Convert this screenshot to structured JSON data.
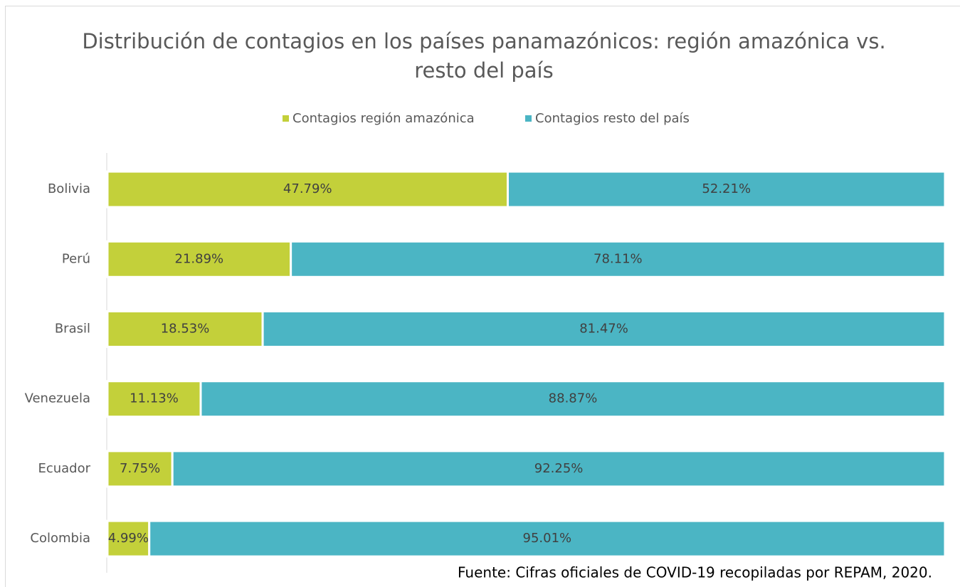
{
  "chart_data": {
    "type": "stacked-bar-horizontal",
    "title": "Distribución de contagios en los países panamazónicos: región amazónica vs. resto del país",
    "source": "Fuente: Cifras oficiales de COVID-19 recopiladas por REPAM, 2020.",
    "categories": [
      "Bolivia",
      "Perú",
      "Brasil",
      "Venezuela",
      "Ecuador",
      "Colombia"
    ],
    "series": [
      {
        "name": "Contagios región amazónica",
        "color": "#c3d03a",
        "values": [
          47.79,
          21.89,
          18.53,
          11.13,
          7.75,
          4.99
        ],
        "value_labels": [
          "47.79%",
          "21.89%",
          "18.53%",
          "11.13%",
          "7.75%",
          "4.99%"
        ]
      },
      {
        "name": "Contagios resto del país",
        "color": "#4bb5c4",
        "values": [
          52.21,
          78.11,
          81.47,
          88.87,
          92.25,
          95.01
        ],
        "value_labels": [
          "52.21%",
          "78.11%",
          "81.47%",
          "88.87%",
          "92.25%",
          "95.01%"
        ]
      }
    ],
    "legend": "top"
  }
}
